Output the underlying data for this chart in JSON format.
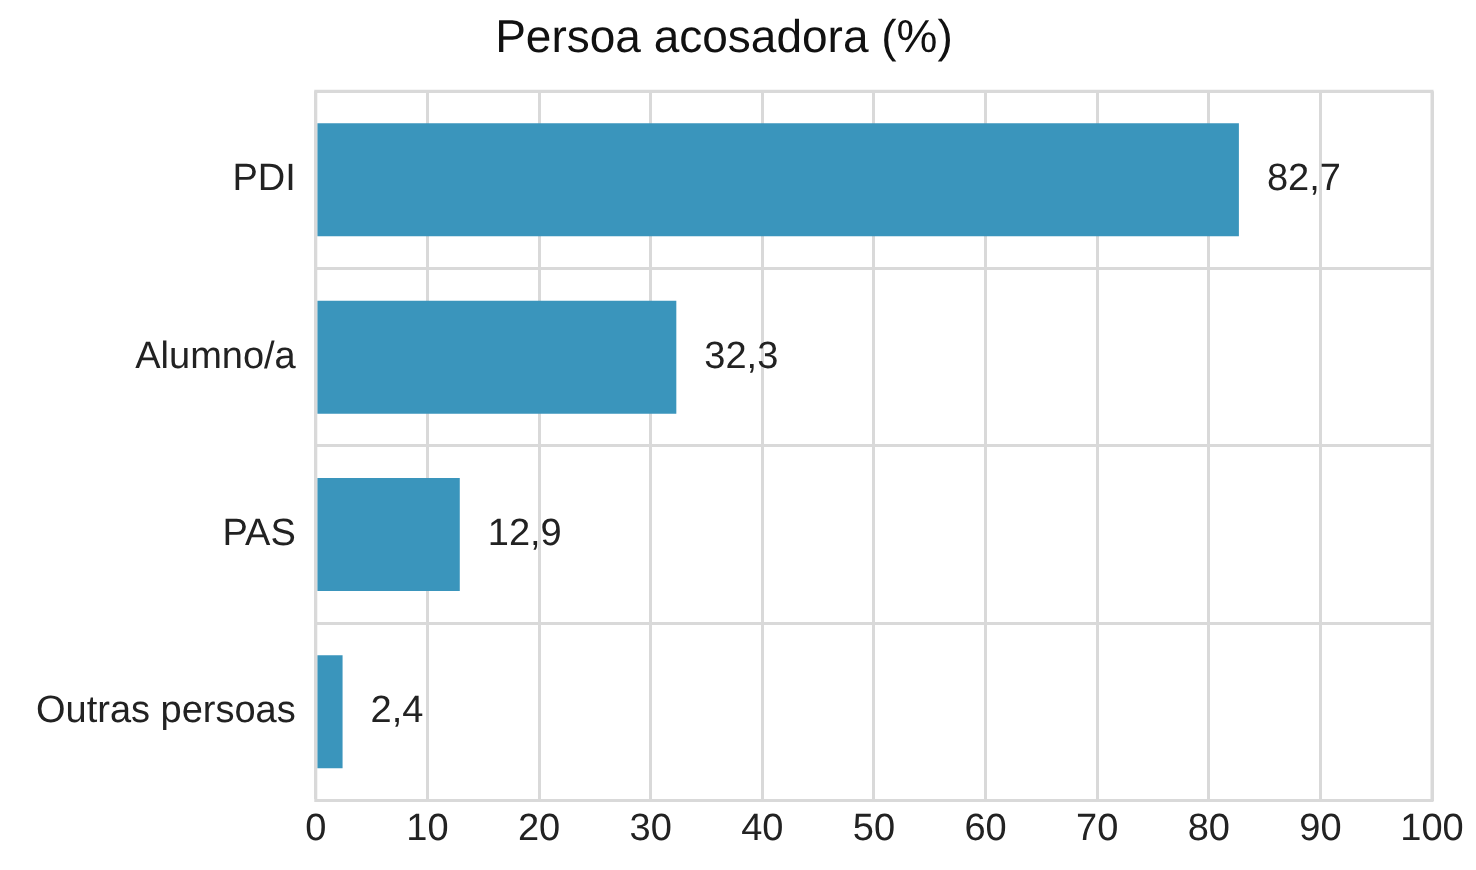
{
  "chart_data": {
    "type": "bar",
    "orientation": "horizontal",
    "title": "Persoa acosadora (%)",
    "categories": [
      "PDI",
      "Alumno/a",
      "PAS",
      "Outras persoas"
    ],
    "values": [
      82.7,
      32.3,
      12.9,
      2.4
    ],
    "value_labels": [
      "82,7",
      "32,3",
      "12,9",
      "2,4"
    ],
    "color": "#3a95bc",
    "xlim": [
      0,
      100
    ],
    "xticks": [
      0,
      10,
      20,
      30,
      40,
      50,
      60,
      70,
      80,
      90,
      100
    ],
    "grid": true,
    "legend": false
  }
}
